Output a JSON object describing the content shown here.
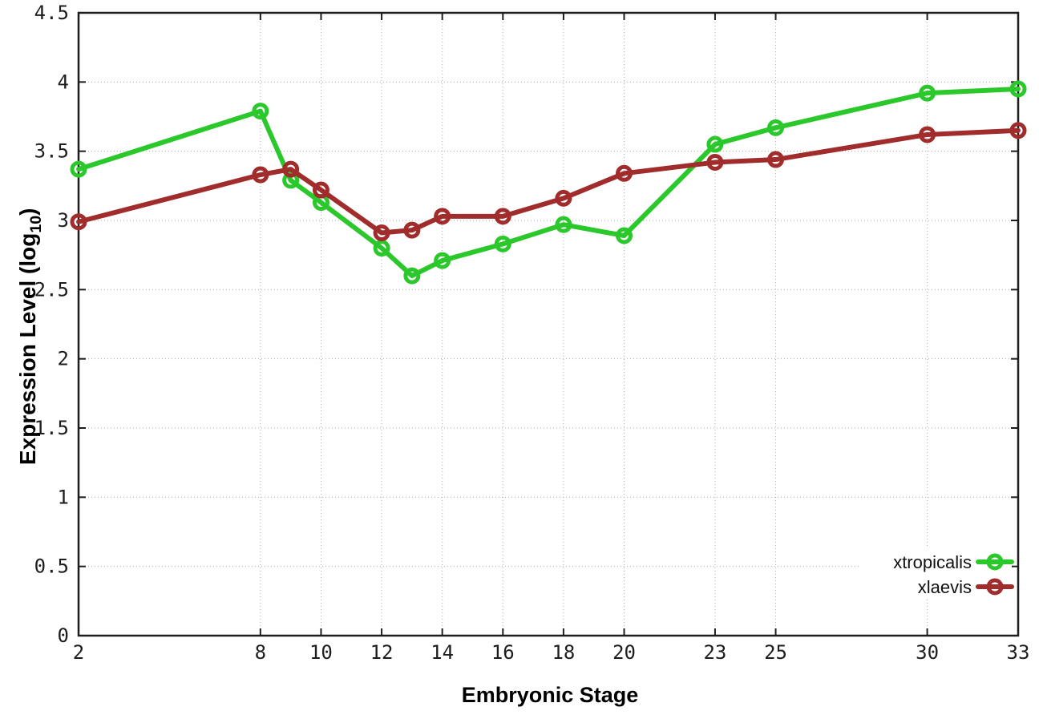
{
  "chart_data": {
    "type": "line",
    "title": "",
    "xlabel": "Embryonic Stage",
    "ylabel": "Expression Level (log10)",
    "ylabel_parts": {
      "prefix": "Expression Level (log",
      "subscript": "10",
      "suffix": ")"
    },
    "x": [
      2,
      8,
      9,
      10,
      12,
      13,
      14,
      16,
      18,
      20,
      23,
      25,
      30,
      33
    ],
    "xlim": [
      2,
      33
    ],
    "ylim": [
      0,
      4.5
    ],
    "xtick_values": [
      2,
      8,
      10,
      12,
      14,
      16,
      18,
      20,
      23,
      25,
      30,
      33
    ],
    "xtick_labels": [
      "2",
      "8",
      "10",
      "12",
      "14",
      "16",
      "18",
      "20",
      "23",
      "25",
      "30",
      "33"
    ],
    "ytick_values": [
      0,
      0.5,
      1,
      1.5,
      2,
      2.5,
      3,
      3.5,
      4,
      4.5
    ],
    "ytick_labels": [
      "0",
      "0.5",
      "1",
      "1.5",
      "2",
      "2.5",
      "3",
      "3.5",
      "4",
      "4.5"
    ],
    "grid": true,
    "legend_position": "bottom-right",
    "colors": {
      "axis": "#1d1d1d",
      "grid": "#ababab",
      "background": "#ffffff",
      "tick_text": "#1d1d1d"
    },
    "series": [
      {
        "name": "xtropicalis",
        "color": "#2bc82b",
        "values": [
          3.37,
          3.79,
          3.29,
          3.13,
          2.8,
          2.6,
          2.71,
          2.83,
          2.97,
          2.89,
          3.55,
          3.67,
          3.92,
          3.95
        ]
      },
      {
        "name": "xlaevis",
        "color": "#a02c2c",
        "values": [
          2.99,
          3.33,
          3.37,
          3.22,
          2.91,
          2.93,
          3.03,
          3.03,
          3.16,
          3.34,
          3.42,
          3.44,
          3.62,
          3.65
        ]
      }
    ]
  }
}
